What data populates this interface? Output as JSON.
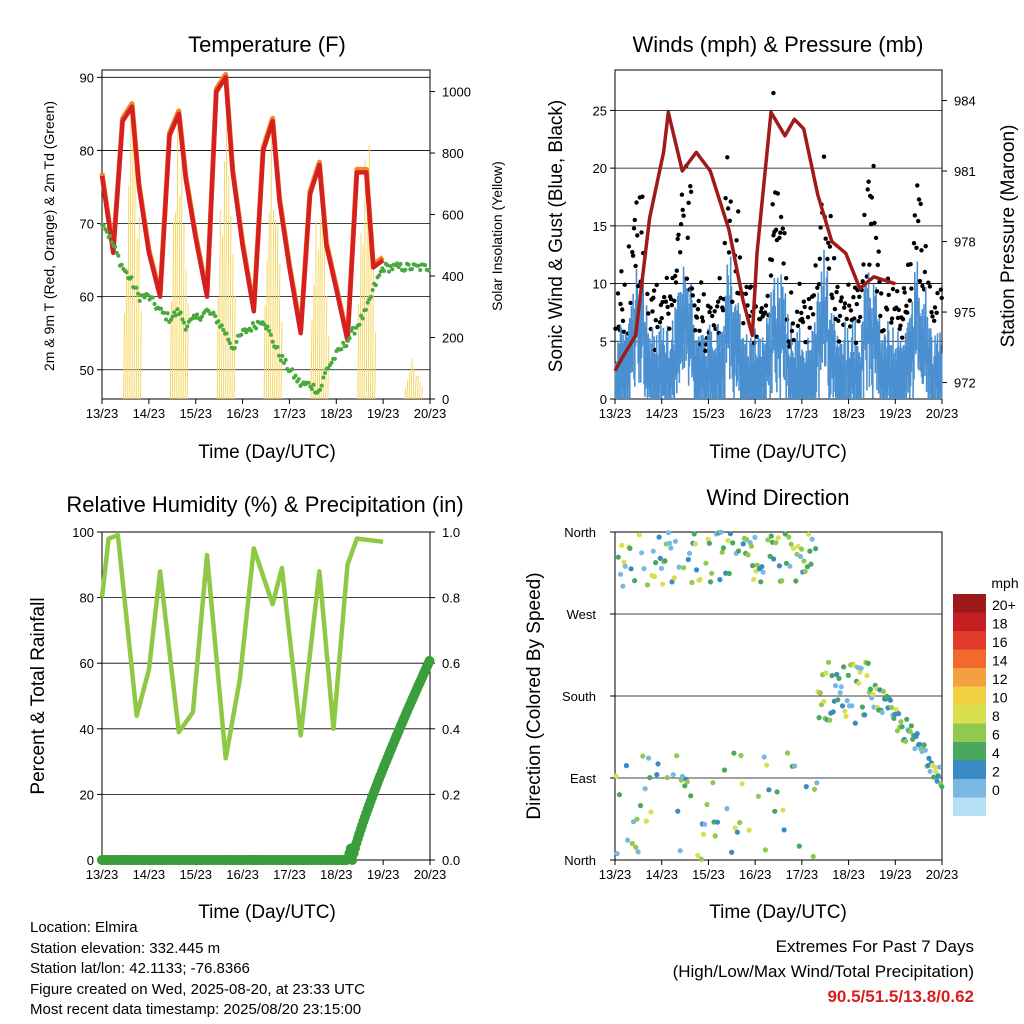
{
  "colors": {
    "temp_2m": "#d62020",
    "temp_9m": "#f0862a",
    "dewpoint": "#49a83e",
    "solar": "#f5d760",
    "wind": "#4a90d0",
    "gust": "#000000",
    "pressure": "#a01a1a",
    "rh": "#8ec844",
    "precip": "#3a9e3a",
    "extremes_text": "#d62020"
  },
  "x_axis": {
    "label": "Time (Day/UTC)",
    "ticks": [
      "13/23",
      "14/23",
      "15/23",
      "16/23",
      "17/23",
      "18/23",
      "19/23",
      "20/23"
    ]
  },
  "temperature_panel": {
    "title": "Temperature (F)",
    "ylabel_left": "2m & 9m T (Red, Orange) & 2m Td (Green)",
    "ylabel_right": "Solar Insolation (Yellow)",
    "left_ticks": [
      "90",
      "80",
      "70",
      "60",
      "50"
    ],
    "right_ticks": [
      "1000",
      "800",
      "600",
      "400",
      "200",
      "0"
    ]
  },
  "wind_panel": {
    "title": "Winds (mph) & Pressure (mb)",
    "ylabel_left": "Sonic Wind & Gust (Blue, Black)",
    "ylabel_right": "Station Pressure (Maroon)",
    "left_ticks": [
      "25",
      "20",
      "15",
      "10",
      "5",
      "0"
    ],
    "right_ticks": [
      "984",
      "981",
      "978",
      "975",
      "972"
    ]
  },
  "rh_panel": {
    "title": "Relative Humidity (%) & Precipitation (in)",
    "ylabel_left": "Percent & Total Rainfall",
    "left_ticks": [
      "100",
      "80",
      "60",
      "40",
      "20",
      "0"
    ],
    "right_ticks": [
      "1.0",
      "0.8",
      "0.6",
      "0.4",
      "0.2",
      "0.0"
    ]
  },
  "direction_panel": {
    "title": "Wind Direction",
    "ylabel": "Direction (Colored By Speed)",
    "ticks": [
      "North",
      "West",
      "South",
      "East",
      "North"
    ],
    "legend_title": "mph",
    "legend_labels": [
      "20+",
      "18",
      "16",
      "14",
      "12",
      "10",
      "8",
      "6",
      "4",
      "2",
      "0"
    ],
    "legend_colors": [
      "#9e1a1a",
      "#c42022",
      "#e03a2a",
      "#f06a30",
      "#f5a040",
      "#f0d040",
      "#d8e050",
      "#90c850",
      "#48a860",
      "#3a8ac4",
      "#7ab8e4",
      "#b8e0f4"
    ]
  },
  "info": {
    "location": "Location: Elmira",
    "elevation": "Station elevation: 332.445 m",
    "latlon": "Station lat/lon: 42.1133; -76.8366",
    "created": "Figure created on Wed, 2025-08-20, at 23:33 UTC",
    "timestamp": "Most recent data timestamp: 2025/08/20 23:15:00"
  },
  "extremes": {
    "title": "Extremes For Past 7 Days",
    "subtitle": "(High/Low/Max Wind/Total Precipitation)",
    "values": "90.5/51.5/13.8/0.62"
  },
  "chart_data": [
    {
      "type": "line",
      "title": "Temperature (F)",
      "xlabel": "Time (Day/UTC)",
      "x": [
        13.96,
        14.2,
        14.4,
        14.6,
        14.75,
        14.96,
        15.2,
        15.4,
        15.6,
        15.75,
        15.96,
        16.2,
        16.4,
        16.6,
        16.75,
        16.96,
        17.2,
        17.4,
        17.6,
        17.75,
        17.96,
        18.2,
        18.4,
        18.6,
        18.75,
        18.96,
        19.2,
        19.4,
        19.6,
        19.75,
        19.96
      ],
      "ylim": [
        46,
        91
      ],
      "y2lim": [
        0,
        1070
      ],
      "series": [
        {
          "name": "2m T",
          "values": [
            76.5,
            66,
            84,
            86,
            75,
            66,
            60,
            82,
            85,
            76,
            68,
            60,
            88,
            90,
            77,
            67,
            58,
            80,
            84,
            73,
            64,
            55,
            74,
            78,
            67,
            61,
            54,
            77,
            77,
            64,
            65
          ]
        },
        {
          "name": "2m Td",
          "values": [
            70.5,
            67,
            64,
            62,
            60,
            60,
            58,
            57,
            58,
            56,
            57,
            58,
            57,
            55,
            53,
            55,
            56,
            57,
            54,
            52,
            50,
            48,
            48,
            47,
            50,
            52,
            54,
            56,
            58,
            61,
            64
          ]
        }
      ],
      "solar_peaks_w_m2": [
        1000,
        1040,
        1060,
        980,
        780,
        1000,
        140
      ]
    },
    {
      "type": "line",
      "title": "Winds (mph) & Pressure (mb)",
      "xlabel": "Time (Day/UTC)",
      "ylim": [
        0,
        28.5
      ],
      "y2lim": [
        971.3,
        985.3
      ],
      "x": [
        13.96,
        14.1,
        14.4,
        14.7,
        15.0,
        15.1,
        15.4,
        15.7,
        16.0,
        16.4,
        16.7,
        16.9,
        17.0,
        17.3,
        17.6,
        17.8,
        18.0,
        18.3,
        18.6,
        18.9,
        19.2,
        19.5,
        19.96
      ],
      "series": [
        {
          "name": "Pressure",
          "values": [
            972.5,
            973.0,
            974.0,
            979.0,
            981.8,
            983.5,
            981.0,
            981.8,
            981.0,
            978.5,
            975.5,
            974.0,
            977.5,
            983.5,
            982.5,
            983.2,
            982.8,
            980.0,
            978.0,
            977.5,
            976.0,
            976.5,
            976.2
          ]
        }
      ],
      "gust_max_mph": 26.5
    },
    {
      "type": "line",
      "title": "Relative Humidity (%) & Precipitation (in)",
      "xlabel": "Time (Day/UTC)",
      "ylim": [
        0,
        100
      ],
      "y2lim": [
        0,
        1.0
      ],
      "x": [
        13.96,
        14.1,
        14.3,
        14.7,
        14.96,
        15.2,
        15.6,
        15.9,
        16.2,
        16.6,
        16.9,
        17.2,
        17.6,
        17.8,
        18.2,
        18.6,
        18.9,
        19.2,
        19.4,
        19.96
      ],
      "series": [
        {
          "name": "RH",
          "values": [
            80,
            98,
            99,
            44,
            58,
            88,
            39,
            45,
            93,
            31,
            55,
            95,
            78,
            89,
            38,
            88,
            40,
            90,
            98,
            97
          ]
        },
        {
          "name": "Precipitation",
          "values": [
            0,
            0,
            0,
            0,
            0,
            0,
            0,
            0,
            0,
            0,
            0,
            0,
            0,
            0,
            0,
            0,
            0,
            0,
            0.1,
            0.61
          ]
        }
      ]
    },
    {
      "type": "scatter",
      "title": "Wind Direction",
      "xlabel": "Time (Day/UTC)",
      "ylabel": "Direction (Colored By Speed)"
    }
  ]
}
